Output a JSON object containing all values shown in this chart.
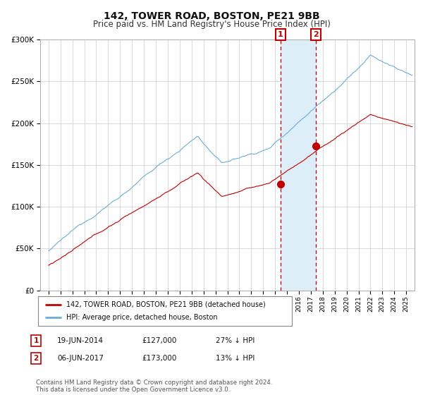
{
  "title": "142, TOWER ROAD, BOSTON, PE21 9BB",
  "subtitle": "Price paid vs. HM Land Registry's House Price Index (HPI)",
  "legend_label_red": "142, TOWER ROAD, BOSTON, PE21 9BB (detached house)",
  "legend_label_blue": "HPI: Average price, detached house, Boston",
  "transaction1_date": "19-JUN-2014",
  "transaction1_price": 127000,
  "transaction1_note": "27% ↓ HPI",
  "transaction2_date": "06-JUN-2017",
  "transaction2_price": 173000,
  "transaction2_note": "13% ↓ HPI",
  "footer": "Contains HM Land Registry data © Crown copyright and database right 2024.\nThis data is licensed under the Open Government Licence v3.0.",
  "ylim": [
    0,
    300000
  ],
  "yticks": [
    0,
    50000,
    100000,
    150000,
    200000,
    250000,
    300000
  ],
  "hpi_color": "#6aaed6",
  "price_color": "#c00000",
  "transaction1_year": 2014.46,
  "transaction2_year": 2017.43,
  "background_color": "#ffffff",
  "plot_bg_color": "#ffffff",
  "grid_color": "#cccccc",
  "span_color": "#ddeef8"
}
